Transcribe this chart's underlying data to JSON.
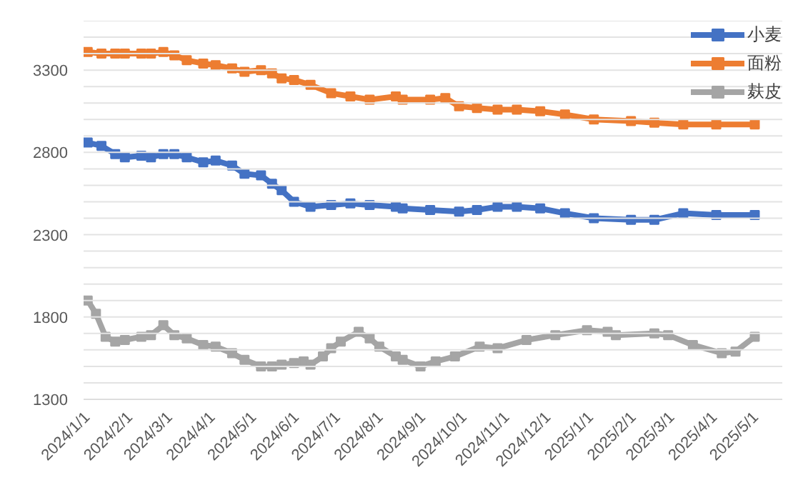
{
  "chart_data": {
    "type": "line",
    "xlim": [
      "2023-12-29",
      "2025-05-20"
    ],
    "xticks": [
      {
        "value": "2024-01-01",
        "label": "2024/1/1"
      },
      {
        "value": "2024-02-01",
        "label": "2024/2/1"
      },
      {
        "value": "2024-03-01",
        "label": "2024/3/1"
      },
      {
        "value": "2024-04-01",
        "label": "2024/4/1"
      },
      {
        "value": "2024-05-01",
        "label": "2024/5/1"
      },
      {
        "value": "2024-06-01",
        "label": "2024/6/1"
      },
      {
        "value": "2024-07-01",
        "label": "2024/7/1"
      },
      {
        "value": "2024-08-01",
        "label": "2024/8/1"
      },
      {
        "value": "2024-09-01",
        "label": "2024/9/1"
      },
      {
        "value": "2024-10-01",
        "label": "2024/10/1"
      },
      {
        "value": "2024-11-01",
        "label": "2024/11/1"
      },
      {
        "value": "2024-12-01",
        "label": "2024/12/1"
      },
      {
        "value": "2025-01-01",
        "label": "2025/1/1"
      },
      {
        "value": "2025-02-01",
        "label": "2025/2/1"
      },
      {
        "value": "2025-03-01",
        "label": "2025/3/1"
      },
      {
        "value": "2025-04-01",
        "label": "2025/4/1"
      },
      {
        "value": "2025-05-01",
        "label": "2025/5/1"
      }
    ],
    "ylim": [
      1300,
      3600
    ],
    "yticks": [
      1300,
      {
        "value": 1400,
        "label": null
      },
      {
        "value": 1500,
        "label": null
      },
      {
        "value": 1600,
        "label": null
      },
      {
        "value": 1700,
        "label": null
      },
      1800,
      {
        "value": 1900,
        "label": null
      },
      {
        "value": 2000,
        "label": null
      },
      {
        "value": 2100,
        "label": null
      },
      {
        "value": 2200,
        "label": null
      },
      2300,
      {
        "value": 2400,
        "label": null
      },
      {
        "value": 2500,
        "label": null
      },
      {
        "value": 2600,
        "label": null
      },
      {
        "value": 2700,
        "label": null
      },
      2800,
      {
        "value": 2900,
        "label": null
      },
      {
        "value": 3000,
        "label": null
      },
      {
        "value": 3100,
        "label": null
      },
      {
        "value": 3200,
        "label": null
      },
      3300,
      {
        "value": 3400,
        "label": null
      },
      {
        "value": 3500,
        "label": null
      },
      {
        "value": 3600,
        "label": null
      }
    ],
    "grid": "y",
    "legend": "top right",
    "marker": "square",
    "line_style": "solid",
    "series": [
      {
        "name": "小麦",
        "color": "#4472c4",
        "x": [
          "2024-01-01",
          "2024-01-11",
          "2024-01-21",
          "2024-01-28",
          "2024-02-09",
          "2024-02-16",
          "2024-02-25",
          "2024-03-04",
          "2024-03-13",
          "2024-03-25",
          "2024-04-03",
          "2024-04-15",
          "2024-04-24",
          "2024-05-06",
          "2024-05-14",
          "2024-05-21",
          "2024-05-30",
          "2024-06-11",
          "2024-06-26",
          "2024-07-10",
          "2024-07-24",
          "2024-08-12",
          "2024-08-17",
          "2024-09-06",
          "2024-09-27",
          "2024-10-10",
          "2024-10-25",
          "2024-11-08",
          "2024-11-25",
          "2024-12-13",
          "2025-01-03",
          "2025-01-30",
          "2025-02-16",
          "2025-03-09",
          "2025-04-02",
          "2025-04-30"
        ],
        "values": [
          2860,
          2840,
          2790,
          2770,
          2780,
          2770,
          2790,
          2790,
          2770,
          2740,
          2750,
          2720,
          2670,
          2660,
          2610,
          2570,
          2500,
          2470,
          2480,
          2490,
          2480,
          2470,
          2460,
          2450,
          2440,
          2450,
          2470,
          2470,
          2460,
          2430,
          2400,
          2390,
          2390,
          2430,
          2420,
          2420
        ]
      },
      {
        "name": "面粉",
        "color": "#ed7d31",
        "x": [
          "2024-01-01",
          "2024-01-11",
          "2024-01-21",
          "2024-01-28",
          "2024-02-09",
          "2024-02-16",
          "2024-02-25",
          "2024-03-04",
          "2024-03-13",
          "2024-03-25",
          "2024-04-03",
          "2024-04-15",
          "2024-04-24",
          "2024-05-06",
          "2024-05-14",
          "2024-05-21",
          "2024-05-30",
          "2024-06-11",
          "2024-06-26",
          "2024-07-10",
          "2024-07-24",
          "2024-08-12",
          "2024-08-17",
          "2024-09-06",
          "2024-09-17",
          "2024-09-27",
          "2024-10-10",
          "2024-10-25",
          "2024-11-08",
          "2024-11-25",
          "2024-12-13",
          "2025-01-03",
          "2025-01-30",
          "2025-02-16",
          "2025-03-09",
          "2025-04-02",
          "2025-04-30"
        ],
        "values": [
          3410,
          3400,
          3400,
          3400,
          3400,
          3400,
          3410,
          3390,
          3360,
          3340,
          3330,
          3310,
          3290,
          3300,
          3280,
          3250,
          3240,
          3210,
          3160,
          3140,
          3120,
          3140,
          3120,
          3120,
          3130,
          3080,
          3070,
          3060,
          3060,
          3050,
          3030,
          3000,
          2990,
          2980,
          2970,
          2970,
          2970
        ]
      },
      {
        "name": "麸皮",
        "color": "#a5a5a5",
        "x": [
          "2024-01-01",
          "2024-01-07",
          "2024-01-14",
          "2024-01-21",
          "2024-01-28",
          "2024-02-09",
          "2024-02-16",
          "2024-02-25",
          "2024-03-04",
          "2024-03-13",
          "2024-03-25",
          "2024-04-03",
          "2024-04-15",
          "2024-04-24",
          "2024-05-06",
          "2024-05-14",
          "2024-05-21",
          "2024-05-30",
          "2024-06-06",
          "2024-06-11",
          "2024-06-20",
          "2024-06-26",
          "2024-07-03",
          "2024-07-16",
          "2024-07-24",
          "2024-07-31",
          "2024-08-12",
          "2024-08-17",
          "2024-08-30",
          "2024-09-10",
          "2024-09-24",
          "2024-10-12",
          "2024-10-25",
          "2024-11-15",
          "2024-12-06",
          "2024-12-29",
          "2025-01-13",
          "2025-01-19",
          "2025-02-16",
          "2025-02-26",
          "2025-03-16",
          "2025-04-06",
          "2025-04-16",
          "2025-04-30"
        ],
        "values": [
          1900,
          1820,
          1680,
          1650,
          1660,
          1680,
          1690,
          1750,
          1690,
          1670,
          1630,
          1620,
          1580,
          1540,
          1500,
          1500,
          1510,
          1520,
          1530,
          1510,
          1560,
          1610,
          1650,
          1710,
          1670,
          1620,
          1560,
          1540,
          1500,
          1530,
          1560,
          1620,
          1610,
          1660,
          1690,
          1720,
          1710,
          1690,
          1700,
          1690,
          1630,
          1580,
          1590,
          1680
        ]
      }
    ]
  }
}
